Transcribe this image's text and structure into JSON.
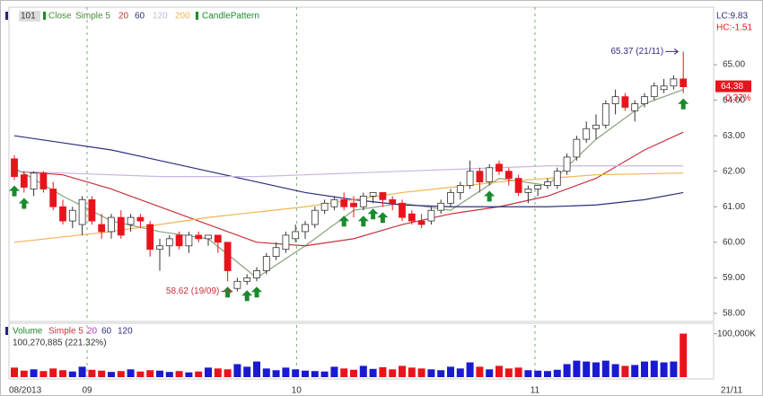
{
  "chart_data": {
    "type": "candlestick",
    "header": {
      "symbol": "101",
      "close_label": "Close",
      "ma_label": "Simple 5",
      "ma_periods": [
        "20",
        "60",
        "120",
        "200"
      ],
      "pattern_label": "CandlePattern",
      "lc": "LC:9.83",
      "hc": "HC:-1.51"
    },
    "candles": [
      [
        62.35,
        62.45,
        61.75,
        61.85
      ],
      [
        61.9,
        62.0,
        61.4,
        61.55
      ],
      [
        61.5,
        62.0,
        61.3,
        61.95
      ],
      [
        61.95,
        62.0,
        61.4,
        61.5
      ],
      [
        61.5,
        61.7,
        60.9,
        61.0
      ],
      [
        61.0,
        61.2,
        60.5,
        60.6
      ],
      [
        60.6,
        61.0,
        60.4,
        60.9
      ],
      [
        60.5,
        61.3,
        60.2,
        61.2
      ],
      [
        61.2,
        61.3,
        60.5,
        60.6
      ],
      [
        60.5,
        60.8,
        60.1,
        60.3
      ],
      [
        60.3,
        60.8,
        60.1,
        60.7
      ],
      [
        60.7,
        60.9,
        60.1,
        60.2
      ],
      [
        60.5,
        60.8,
        60.3,
        60.7
      ],
      [
        60.7,
        60.8,
        60.4,
        60.6
      ],
      [
        60.5,
        60.6,
        59.6,
        59.8
      ],
      [
        59.8,
        60.1,
        59.2,
        59.9
      ],
      [
        59.9,
        60.2,
        59.6,
        60.1
      ],
      [
        60.2,
        60.3,
        59.8,
        59.9
      ],
      [
        59.9,
        60.3,
        59.7,
        60.2
      ],
      [
        60.2,
        60.3,
        60.0,
        60.1
      ],
      [
        60.1,
        60.2,
        59.9,
        60.2
      ],
      [
        60.2,
        60.2,
        59.7,
        60.0
      ],
      [
        60.0,
        60.0,
        58.9,
        59.2
      ],
      [
        58.7,
        59.0,
        58.62,
        58.9
      ],
      [
        58.9,
        59.1,
        58.8,
        59.0
      ],
      [
        59.0,
        59.3,
        58.9,
        59.2
      ],
      [
        59.2,
        59.7,
        59.1,
        59.6
      ],
      [
        59.6,
        60.0,
        59.5,
        59.85
      ],
      [
        59.8,
        60.3,
        59.7,
        60.2
      ],
      [
        60.1,
        60.5,
        60.0,
        60.3
      ],
      [
        60.3,
        60.6,
        60.1,
        60.5
      ],
      [
        60.5,
        61.0,
        60.4,
        60.9
      ],
      [
        60.9,
        61.2,
        60.8,
        61.1
      ],
      [
        61.0,
        61.3,
        60.9,
        61.2
      ],
      [
        61.2,
        61.4,
        60.9,
        61.0
      ],
      [
        61.1,
        61.3,
        60.7,
        61.0
      ],
      [
        61.0,
        61.4,
        60.9,
        61.3
      ],
      [
        61.3,
        61.4,
        61.1,
        61.4
      ],
      [
        61.4,
        61.4,
        61.0,
        61.2
      ],
      [
        61.2,
        61.3,
        60.9,
        61.1
      ],
      [
        61.1,
        61.2,
        60.6,
        60.7
      ],
      [
        60.8,
        60.9,
        60.5,
        60.6
      ],
      [
        60.6,
        60.8,
        60.4,
        60.5
      ],
      [
        60.6,
        61.0,
        60.5,
        60.9
      ],
      [
        60.9,
        61.2,
        60.8,
        61.1
      ],
      [
        61.1,
        61.5,
        61.0,
        61.4
      ],
      [
        61.4,
        61.7,
        61.2,
        61.6
      ],
      [
        61.6,
        62.3,
        61.5,
        62.0
      ],
      [
        62.0,
        62.1,
        61.4,
        61.7
      ],
      [
        61.7,
        62.2,
        61.6,
        62.1
      ],
      [
        62.2,
        62.3,
        61.9,
        62.0
      ],
      [
        62.0,
        62.1,
        61.6,
        61.8
      ],
      [
        61.8,
        61.9,
        61.3,
        61.4
      ],
      [
        61.4,
        61.6,
        61.1,
        61.5
      ],
      [
        61.5,
        61.6,
        61.3,
        61.6
      ],
      [
        61.6,
        61.8,
        61.5,
        61.7
      ],
      [
        61.6,
        62.1,
        61.5,
        62.0
      ],
      [
        62.0,
        62.5,
        61.9,
        62.4
      ],
      [
        62.4,
        63.0,
        62.3,
        62.9
      ],
      [
        62.9,
        63.4,
        62.8,
        63.2
      ],
      [
        63.2,
        63.6,
        62.9,
        63.3
      ],
      [
        63.3,
        64.0,
        63.2,
        63.9
      ],
      [
        63.9,
        64.3,
        63.6,
        64.1
      ],
      [
        64.1,
        64.2,
        63.7,
        63.8
      ],
      [
        63.7,
        64.0,
        63.4,
        63.9
      ],
      [
        63.9,
        64.2,
        63.8,
        64.1
      ],
      [
        64.1,
        64.5,
        64.0,
        64.4
      ],
      [
        64.3,
        64.6,
        64.2,
        64.4
      ],
      [
        64.4,
        64.7,
        64.3,
        64.6
      ],
      [
        64.6,
        65.37,
        64.2,
        64.38
      ]
    ],
    "up_color": "#ffffff",
    "down_color": "#e8141c",
    "series": [
      {
        "name": "5",
        "color": "#8aa27a",
        "x": [
          0,
          5,
          10,
          15,
          20,
          25,
          30,
          35,
          40,
          45,
          50,
          55,
          60,
          65,
          69
        ],
        "values": [
          62.1,
          61.3,
          60.6,
          60.3,
          60.1,
          59.0,
          59.9,
          60.9,
          61.1,
          60.9,
          61.8,
          61.6,
          62.9,
          63.9,
          64.3
        ]
      },
      {
        "name": "20",
        "color": "#c8323c",
        "x": [
          0,
          5,
          10,
          15,
          20,
          25,
          30,
          35,
          40,
          45,
          50,
          55,
          60,
          65,
          69
        ],
        "values": [
          62.0,
          61.9,
          61.5,
          61.0,
          60.5,
          60.0,
          59.9,
          60.1,
          60.5,
          60.8,
          61.0,
          61.3,
          61.8,
          62.6,
          63.1
        ]
      },
      {
        "name": "60",
        "color": "#2e2e7e",
        "x": [
          0,
          5,
          10,
          15,
          20,
          25,
          30,
          35,
          40,
          45,
          50,
          55,
          60,
          65,
          69
        ],
        "values": [
          63.0,
          62.8,
          62.6,
          62.3,
          62.0,
          61.7,
          61.4,
          61.2,
          61.05,
          61.0,
          61.0,
          61.0,
          61.05,
          61.2,
          61.4
        ]
      },
      {
        "name": "120",
        "color": "#c9b7e2",
        "x": [
          0,
          5,
          10,
          15,
          20,
          25,
          30,
          35,
          40,
          45,
          50,
          55,
          60,
          65,
          69
        ],
        "values": [
          62.0,
          61.95,
          61.9,
          61.85,
          61.85,
          61.85,
          61.9,
          61.95,
          62.0,
          62.05,
          62.1,
          62.15,
          62.15,
          62.15,
          62.15
        ]
      },
      {
        "name": "200",
        "color": "#f0b455",
        "x": [
          0,
          10,
          20,
          30,
          40,
          50,
          60,
          69
        ],
        "values": [
          60.0,
          60.3,
          60.7,
          61.0,
          61.4,
          61.7,
          61.9,
          61.95
        ]
      }
    ],
    "pattern_signals": [
      0,
      1,
      22,
      24,
      25,
      34,
      36,
      37,
      38,
      49,
      69
    ],
    "pattern_color": "#1a8a2e",
    "ylim": [
      57.77,
      66.62
    ],
    "yticks": [
      {
        "value": 58,
        "label": "58.00"
      },
      {
        "value": 59,
        "label": "59.00"
      },
      {
        "value": 60,
        "label": "60.00"
      },
      {
        "value": 61,
        "label": "61.00"
      },
      {
        "value": 62,
        "label": "62.00"
      },
      {
        "value": 63,
        "label": "63.00"
      },
      {
        "value": 64,
        "label": "64.00"
      },
      {
        "value": 65,
        "label": "65.00"
      }
    ],
    "xticks": [
      {
        "value": 0,
        "label": "08/2013"
      },
      {
        "value": 7.5,
        "label": "09"
      },
      {
        "value": 29.1,
        "label": "10"
      },
      {
        "value": 53.7,
        "label": "11"
      }
    ],
    "last_date": "21/11",
    "last_price_label": "64.38",
    "change_label": "-0.37%",
    "annotations": [
      {
        "text": "65.37 (21/11)",
        "candle": 69
      },
      {
        "text": "58.62 (19/09)",
        "candle": 23
      }
    ],
    "volume": {
      "header": {
        "name": "Volume",
        "ma_label": "Simple 5",
        "ma_periods": [
          "20",
          "60",
          "120"
        ],
        "last": "100,270,885 (221.32%)"
      },
      "values": [
        22000000,
        15000000,
        18000000,
        14000000,
        20000000,
        16000000,
        13000000,
        24000000,
        17000000,
        15000000,
        12000000,
        14000000,
        18000000,
        13000000,
        16000000,
        15000000,
        12000000,
        14000000,
        11000000,
        13000000,
        22000000,
        20000000,
        18000000,
        30000000,
        24000000,
        36000000,
        20000000,
        16000000,
        22000000,
        18000000,
        15000000,
        14000000,
        13000000,
        24000000,
        20000000,
        17000000,
        26000000,
        19000000,
        23000000,
        18000000,
        26000000,
        22000000,
        20000000,
        18000000,
        16000000,
        24000000,
        20000000,
        34000000,
        24000000,
        18000000,
        26000000,
        20000000,
        22000000,
        16000000,
        15000000,
        14000000,
        17000000,
        30000000,
        38000000,
        36000000,
        34000000,
        38000000,
        30000000,
        26000000,
        28000000,
        36000000,
        38000000,
        34000000,
        36000000,
        100270885
      ],
      "ylim": [
        0,
        120000000
      ],
      "yticks": [
        {
          "value": 100000000,
          "label": "100,000K"
        }
      ],
      "up_color": "#1a1ad0",
      "down_color": "#e8141c"
    }
  }
}
